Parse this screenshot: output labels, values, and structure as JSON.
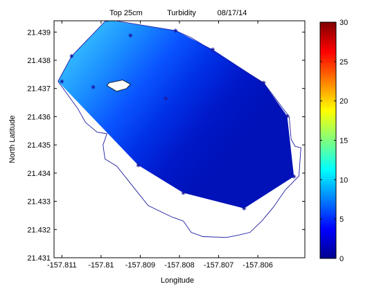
{
  "chart_data": {
    "type": "heatmap",
    "title_parts": [
      "Top 25cm",
      "Turbidity",
      "08/17/14"
    ],
    "xlabel": "Longitude",
    "ylabel": "North Latitude",
    "xlim": [
      -157.8112,
      -157.8048
    ],
    "ylim": [
      21.431,
      21.4394
    ],
    "xticks": [
      -157.811,
      -157.81,
      -157.809,
      -157.808,
      -157.807,
      -157.806
    ],
    "xtick_labels": [
      "-157.811",
      "-157.81",
      "-157.809",
      "-157.808",
      "-157.807",
      "-157.806"
    ],
    "yticks": [
      21.431,
      21.432,
      21.433,
      21.434,
      21.435,
      21.436,
      21.437,
      21.438,
      21.439
    ],
    "ytick_labels": [
      "21.431",
      "21.432",
      "21.433",
      "21.434",
      "21.435",
      "21.436",
      "21.437",
      "21.438",
      "21.439"
    ],
    "colorbar": {
      "range": [
        0,
        30
      ],
      "ticks": [
        0,
        5,
        10,
        15,
        20,
        25,
        30
      ],
      "tick_labels": [
        "0",
        "5",
        "10",
        "15",
        "20",
        "25",
        "30"
      ],
      "colormap": "jet"
    },
    "sample_points": [
      {
        "x": -157.811,
        "y": 21.43725,
        "value": 7.5
      },
      {
        "x": -157.81075,
        "y": 21.43815,
        "value": 9.0
      },
      {
        "x": -157.8102,
        "y": 21.43705,
        "value": 6.5
      },
      {
        "x": -157.80985,
        "y": 21.43943,
        "value": 6.0
      },
      {
        "x": -157.80925,
        "y": 21.43888,
        "value": 6.0
      },
      {
        "x": -157.8081,
        "y": 21.43905,
        "value": 4.5
      },
      {
        "x": -157.80715,
        "y": 21.43838,
        "value": 3.5
      },
      {
        "x": -157.80585,
        "y": 21.4372,
        "value": 3.0
      },
      {
        "x": -157.80525,
        "y": 21.43602,
        "value": 2.5
      },
      {
        "x": -157.80508,
        "y": 21.43388,
        "value": 2.5
      },
      {
        "x": -157.80635,
        "y": 21.43275,
        "value": 3.0
      },
      {
        "x": -157.8079,
        "y": 21.4333,
        "value": 3.5
      },
      {
        "x": -157.80905,
        "y": 21.43428,
        "value": 4.5
      },
      {
        "x": -157.80835,
        "y": 21.43665,
        "value": 4.0
      }
    ],
    "island": [
      [
        -157.80985,
        21.4371
      ],
      [
        -157.8096,
        21.4369
      ],
      [
        -157.80935,
        21.437
      ],
      [
        -157.80925,
        21.43715
      ],
      [
        -157.80945,
        21.4373
      ],
      [
        -157.8098,
        21.4372
      ]
    ],
    "shoreline": [
      [
        -157.8111,
        21.43725
      ],
      [
        -157.81075,
        21.43815
      ],
      [
        -157.80985,
        21.43945
      ],
      [
        -157.8081,
        21.43905
      ],
      [
        -157.8077,
        21.4388
      ],
      [
        -157.8072,
        21.43838
      ],
      [
        -157.80585,
        21.4372
      ],
      [
        -157.8052,
        21.436
      ],
      [
        -157.80515,
        21.4352
      ],
      [
        -157.80505,
        21.43495
      ],
      [
        -157.8049,
        21.4349
      ],
      [
        -157.80495,
        21.4339
      ],
      [
        -157.8053,
        21.4334
      ],
      [
        -157.8056,
        21.4328
      ],
      [
        -157.8059,
        21.4323
      ],
      [
        -157.8062,
        21.4319
      ],
      [
        -157.8065,
        21.4318
      ],
      [
        -157.8068,
        21.43172
      ],
      [
        -157.8074,
        21.43175
      ],
      [
        -157.8077,
        21.4319
      ],
      [
        -157.8078,
        21.4321
      ],
      [
        -157.8079,
        21.4323
      ],
      [
        -157.8082,
        21.43245
      ],
      [
        -157.8088,
        21.43285
      ],
      [
        -157.8092,
        21.43355
      ],
      [
        -157.8096,
        21.43425
      ],
      [
        -157.8099,
        21.4345
      ],
      [
        -157.80995,
        21.435
      ],
      [
        -157.80985,
        21.4354
      ],
      [
        -157.8101,
        21.43545
      ],
      [
        -157.8104,
        21.4358
      ],
      [
        -157.8106,
        21.4363
      ],
      [
        -157.8111,
        21.43725
      ]
    ],
    "data_hull": [
      [
        -157.8111,
        21.43725
      ],
      [
        -157.81075,
        21.43815
      ],
      [
        -157.80985,
        21.43943
      ],
      [
        -157.8081,
        21.43905
      ],
      [
        -157.80715,
        21.43838
      ],
      [
        -157.80585,
        21.4372
      ],
      [
        -157.80525,
        21.43602
      ],
      [
        -157.80508,
        21.43388
      ],
      [
        -157.80635,
        21.43275
      ],
      [
        -157.8079,
        21.4333
      ],
      [
        -157.80905,
        21.43428
      ]
    ]
  }
}
